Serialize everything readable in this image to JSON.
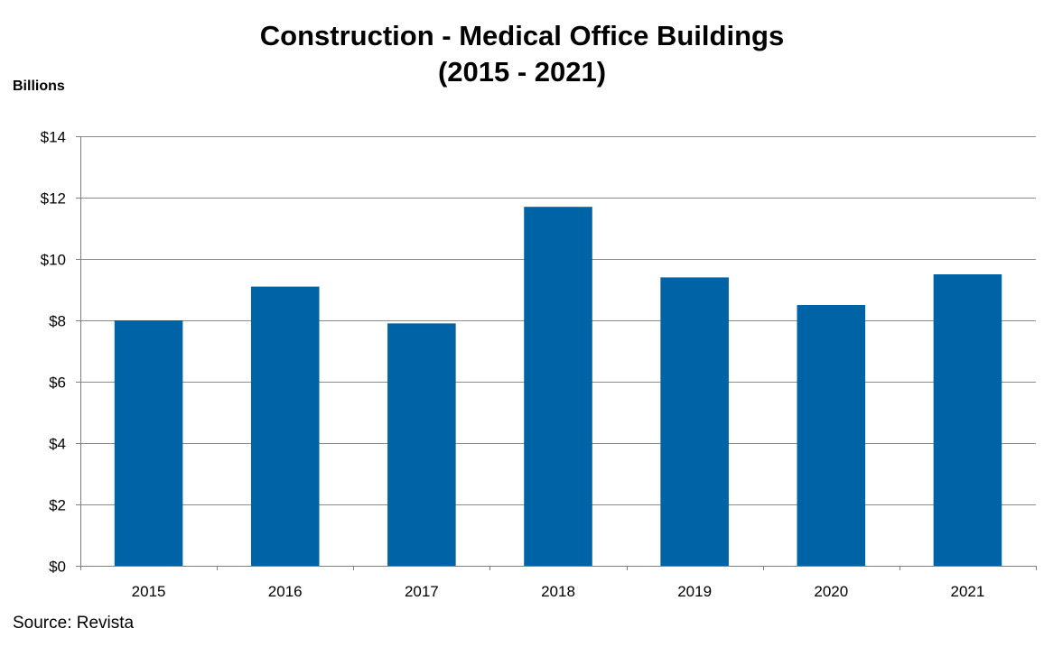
{
  "chart_data": {
    "type": "bar",
    "title_line1": "Construction - Medical Office Buildings",
    "title_line2": "(2015 - 2021)",
    "ylabel": "Billions",
    "xlabel": "",
    "categories": [
      "2015",
      "2016",
      "2017",
      "2018",
      "2019",
      "2020",
      "2021"
    ],
    "values": [
      8.0,
      9.1,
      7.9,
      11.7,
      9.4,
      8.5,
      9.5
    ],
    "ylim": [
      0,
      14
    ],
    "yticks": [
      0,
      2,
      4,
      6,
      8,
      10,
      12,
      14
    ],
    "ytick_labels": [
      "$0",
      "$2",
      "$4",
      "$6",
      "$8",
      "$10",
      "$12",
      "$14"
    ],
    "grid": true,
    "bar_color": "#0063A6"
  },
  "source": "Source: Revista"
}
